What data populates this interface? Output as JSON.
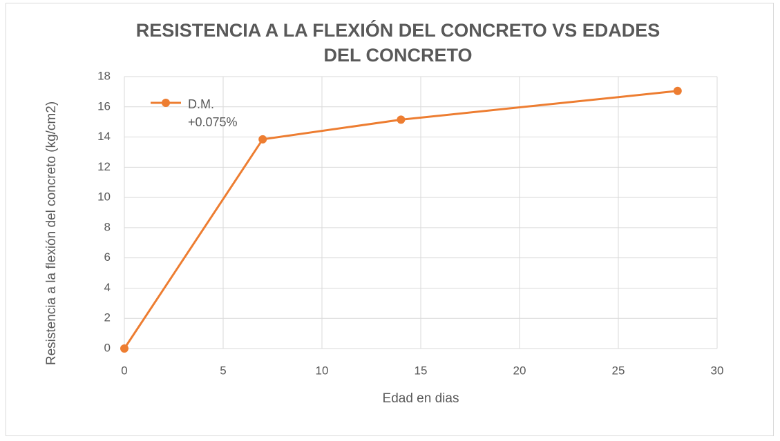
{
  "chart_data": {
    "type": "line",
    "title": "RESISTENCIA A LA FLEXIÓN DEL CONCRETO VS EDADES DEL CONCRETO",
    "xlabel": "Edad en dias",
    "ylabel": "Resistencia a la flexión del concreto (kg/cm2)",
    "x": [
      0,
      7,
      14,
      28
    ],
    "series": [
      {
        "name": "D.M. +0.075%",
        "color": "#ed7d31",
        "values": [
          0,
          13.85,
          15.15,
          17.05
        ]
      }
    ],
    "xlim": [
      0,
      30
    ],
    "xticks": [
      0,
      5,
      10,
      15,
      20,
      25,
      30
    ],
    "ylim": [
      0,
      18
    ],
    "yticks": [
      0,
      2,
      4,
      6,
      8,
      10,
      12,
      14,
      16,
      18
    ],
    "grid": true,
    "legend": "top-left"
  }
}
